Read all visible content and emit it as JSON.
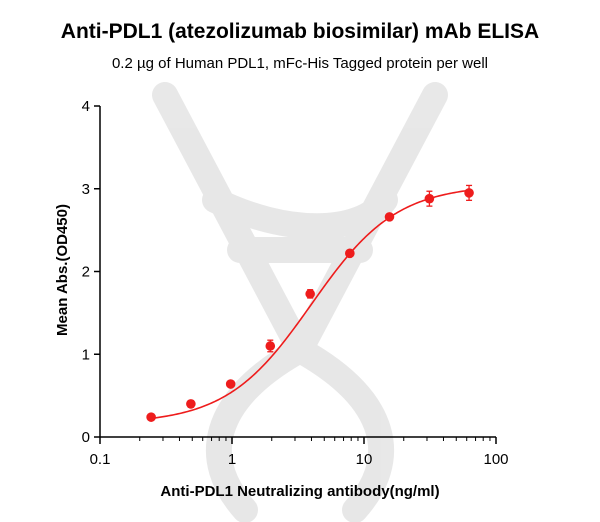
{
  "chart_data": {
    "type": "scatter",
    "title": "Anti-PDL1 (atezolizumab biosimilar) mAb ELISA",
    "subtitle": "0.2 µg of Human PDL1, mFc-His Tagged protein per well",
    "xlabel": "Anti-PDL1 Neutralizing antibody(ng/ml)",
    "ylabel": "Mean Abs.(OD450)",
    "xscale": "log",
    "xlim": [
      0.1,
      100
    ],
    "ylim": [
      0,
      4
    ],
    "xticks": [
      "0.1",
      "1",
      "10",
      "100"
    ],
    "yticks": [
      "0",
      "1",
      "2",
      "3",
      "4"
    ],
    "grid": false,
    "color": "#ee1c1c",
    "fit_curve": "sigmoidal (4-parameter logistic)",
    "series": [
      {
        "x": [
          0.244,
          0.488,
          0.977,
          1.95,
          3.91,
          7.81,
          15.6,
          31.3,
          62.5
        ],
        "y": [
          0.24,
          0.4,
          0.64,
          1.1,
          1.73,
          2.22,
          2.66,
          2.88,
          2.95
        ],
        "error": [
          0.02,
          0.04,
          0.03,
          0.07,
          0.05,
          0.03,
          0.03,
          0.09,
          0.09
        ]
      }
    ],
    "fit": {
      "bottom": 0.16,
      "top": 3.05,
      "ec50": 4.0,
      "hill": 1.35
    }
  }
}
